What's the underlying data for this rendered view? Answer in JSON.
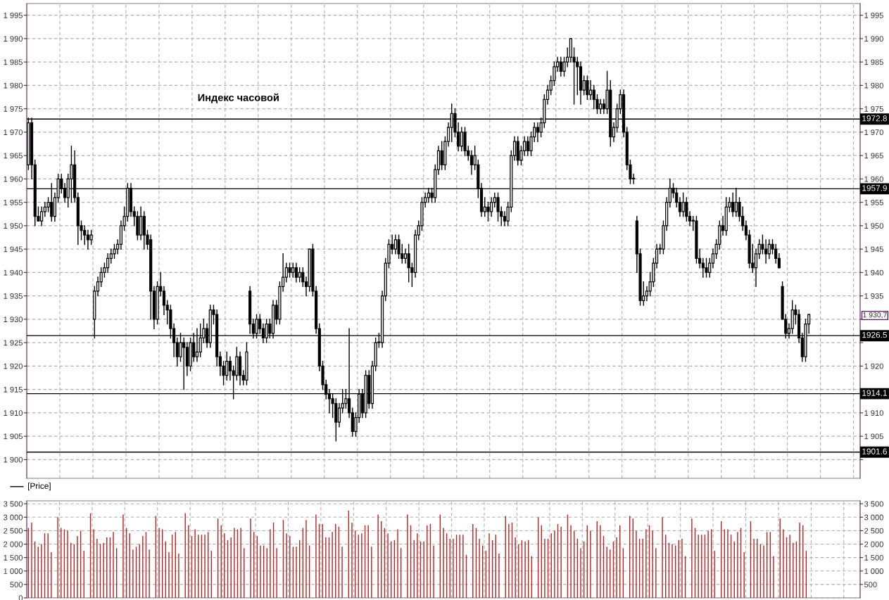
{
  "chart_data": [
    {
      "type": "candlestick",
      "title": "Индекс часовой",
      "grid": true,
      "annotations": [
        "[Price]",
        "1 930,7"
      ],
      "categories": [
        null,
        null,
        null,
        null,
        null,
        null,
        null,
        null,
        null,
        null,
        null,
        null,
        null,
        null,
        null,
        null,
        null,
        null,
        null,
        null,
        null,
        null,
        null,
        null,
        null,
        null,
        null,
        null,
        null,
        null,
        null,
        null,
        null,
        null,
        null,
        null,
        null,
        null,
        null,
        null,
        null,
        null,
        null,
        null,
        null,
        null,
        null,
        null,
        null,
        null,
        null,
        null,
        null,
        null,
        null,
        null,
        null,
        null,
        null,
        null,
        null,
        null,
        null,
        null,
        null,
        null,
        null,
        null,
        null,
        null,
        null,
        null,
        null,
        null,
        null,
        null,
        null,
        null,
        null,
        null,
        null,
        null,
        null,
        null,
        null,
        null,
        null,
        null,
        null,
        null,
        null,
        null,
        null,
        null,
        null,
        null,
        null,
        null,
        null,
        null,
        null,
        null,
        null,
        null,
        null,
        null,
        null,
        null,
        null,
        null,
        null,
        null,
        null,
        null,
        null,
        null,
        null,
        null,
        null,
        null,
        null,
        null,
        null,
        null,
        null,
        null,
        null,
        null,
        null,
        null,
        null,
        null,
        null,
        null,
        null,
        null,
        null,
        null,
        null,
        null,
        null,
        null,
        null,
        null,
        null,
        null,
        null,
        null,
        null,
        null,
        null,
        null,
        null,
        null,
        null,
        null,
        null,
        null,
        null,
        null,
        null,
        null,
        null,
        null,
        null,
        null,
        null,
        null,
        null,
        null,
        null,
        null,
        null,
        null,
        null,
        null,
        null,
        null,
        null,
        null,
        null,
        null,
        null,
        null,
        null,
        null,
        null,
        null,
        null,
        null,
        null,
        null,
        null,
        null,
        null,
        null,
        null,
        null,
        null,
        null,
        null,
        null,
        null,
        null,
        null,
        null,
        null,
        null,
        null,
        null,
        null,
        null,
        null,
        null,
        null,
        null,
        null,
        null,
        null,
        null,
        null,
        null,
        null,
        null,
        null,
        null,
        null,
        null,
        null,
        null,
        null,
        null,
        null,
        null,
        null,
        null,
        null,
        null,
        null,
        null,
        null,
        null,
        null,
        null,
        null,
        null,
        null,
        null,
        null,
        null,
        null,
        null
      ],
      "ohlc": [
        [
          1963,
          1973,
          1962,
          1972
        ],
        [
          1972,
          1973,
          1960,
          1963
        ],
        [
          1963,
          1964,
          1950,
          1952
        ],
        [
          1952,
          1954,
          1951,
          1951
        ],
        [
          1951,
          1954,
          1950,
          1953
        ],
        [
          1953,
          1955,
          1952,
          1954
        ],
        [
          1954,
          1956,
          1953,
          1955
        ],
        [
          1955,
          1959,
          1951,
          1952
        ],
        [
          1952,
          1957,
          1951,
          1956
        ],
        [
          1956,
          1961,
          1955,
          1960
        ],
        [
          1960,
          1961,
          1957,
          1958
        ],
        [
          1958,
          1959,
          1955,
          1956
        ],
        [
          1956,
          1961,
          1954,
          1960
        ],
        [
          1960,
          1967,
          1955,
          1963
        ],
        [
          1963,
          1966,
          1955,
          1956
        ],
        [
          1956,
          1957,
          1946,
          1950
        ],
        [
          1950,
          1951,
          1947,
          1949
        ],
        [
          1949,
          1950,
          1946,
          1948
        ],
        [
          1948,
          1949,
          1945,
          1947
        ],
        [
          1947,
          1949,
          1946,
          1948
        ],
        [
          1930,
          1937,
          1926,
          1936
        ],
        [
          1936,
          1939,
          1935,
          1938
        ],
        [
          1938,
          1941,
          1937,
          1940
        ],
        [
          1940,
          1942,
          1939,
          1941
        ],
        [
          1941,
          1944,
          1940,
          1943
        ],
        [
          1943,
          1945,
          1942,
          1944
        ],
        [
          1944,
          1946,
          1943,
          1945
        ],
        [
          1945,
          1947,
          1944,
          1946
        ],
        [
          1946,
          1951,
          1945,
          1950
        ],
        [
          1950,
          1954,
          1949,
          1952
        ],
        [
          1952,
          1959,
          1951,
          1958
        ],
        [
          1958,
          1959,
          1952,
          1953
        ],
        [
          1953,
          1954,
          1950,
          1952
        ],
        [
          1952,
          1953,
          1947,
          1948
        ],
        [
          1948,
          1954,
          1947,
          1952
        ],
        [
          1952,
          1953,
          1945,
          1948
        ],
        [
          1948,
          1949,
          1945,
          1946
        ],
        [
          1947,
          1948,
          1930,
          1936
        ],
        [
          1936,
          1937,
          1928,
          1930
        ],
        [
          1930,
          1938,
          1929,
          1937
        ],
        [
          1937,
          1940,
          1935,
          1936
        ],
        [
          1936,
          1937,
          1931,
          1933
        ],
        [
          1933,
          1934,
          1929,
          1932
        ],
        [
          1932,
          1933,
          1926,
          1928
        ],
        [
          1928,
          1929,
          1922,
          1925
        ],
        [
          1925,
          1926,
          1920,
          1922
        ],
        [
          1922,
          1927,
          1921,
          1925
        ],
        [
          1925,
          1926,
          1915,
          1924
        ],
        [
          1924,
          1925,
          1918,
          1920
        ],
        [
          1920,
          1926,
          1919,
          1925
        ],
        [
          1925,
          1927,
          1921,
          1922
        ],
        [
          1922,
          1928,
          1921,
          1923
        ],
        [
          1923,
          1929,
          1922,
          1926
        ],
        [
          1926,
          1930,
          1925,
          1928
        ],
        [
          1928,
          1929,
          1924,
          1925
        ],
        [
          1925,
          1933,
          1924,
          1932
        ],
        [
          1932,
          1933,
          1929,
          1931
        ],
        [
          1931,
          1932,
          1920,
          1922
        ],
        [
          1922,
          1923,
          1918,
          1920
        ],
        [
          1920,
          1921,
          1916,
          1918
        ],
        [
          1918,
          1923,
          1917,
          1921
        ],
        [
          1921,
          1922,
          1917,
          1919
        ],
        [
          1919,
          1920,
          1913,
          1918
        ],
        [
          1918,
          1924,
          1917,
          1922
        ],
        [
          1922,
          1923,
          1916,
          1918
        ],
        [
          1918,
          1919,
          1916,
          1917
        ],
        [
          1917,
          1925,
          1916,
          1923
        ],
        [
          1936,
          1937,
          1927,
          1929
        ],
        [
          1929,
          1930,
          1926,
          1927
        ],
        [
          1927,
          1931,
          1926,
          1930
        ],
        [
          1930,
          1931,
          1927,
          1928
        ],
        [
          1928,
          1929,
          1925,
          1926
        ],
        [
          1926,
          1930,
          1925,
          1929
        ],
        [
          1929,
          1930,
          1926,
          1927
        ],
        [
          1927,
          1934,
          1926,
          1933
        ],
        [
          1933,
          1934,
          1929,
          1930
        ],
        [
          1930,
          1938,
          1929,
          1937
        ],
        [
          1937,
          1944,
          1936,
          1939
        ],
        [
          1939,
          1942,
          1938,
          1941
        ],
        [
          1941,
          1942,
          1939,
          1940
        ],
        [
          1940,
          1942,
          1939,
          1941
        ],
        [
          1941,
          1942,
          1938,
          1939
        ],
        [
          1939,
          1941,
          1938,
          1940
        ],
        [
          1940,
          1941,
          1937,
          1938
        ],
        [
          1938,
          1939,
          1935,
          1937
        ],
        [
          1937,
          1945,
          1936,
          1945
        ],
        [
          1945,
          1946,
          1935,
          1936
        ],
        [
          1936,
          1937,
          1927,
          1928
        ],
        [
          1928,
          1929,
          1919,
          1920
        ],
        [
          1920,
          1921,
          1915,
          1916
        ],
        [
          1916,
          1917,
          1913,
          1914
        ],
        [
          1914,
          1915,
          1910,
          1913
        ],
        [
          1913,
          1914,
          1909,
          1912
        ],
        [
          1912,
          1913,
          1904,
          1908
        ],
        [
          1908,
          1912,
          1907,
          1911
        ],
        [
          1911,
          1915,
          1910,
          1912
        ],
        [
          1912,
          1915,
          1911,
          1913
        ],
        [
          1913,
          1928,
          1909,
          1910
        ],
        [
          1910,
          1911,
          1905,
          1906
        ],
        [
          1906,
          1910,
          1905,
          1909
        ],
        [
          1909,
          1915,
          1908,
          1914
        ],
        [
          1914,
          1915,
          1909,
          1910
        ],
        [
          1910,
          1919,
          1909,
          1918
        ],
        [
          1918,
          1919,
          1911,
          1912
        ],
        [
          1912,
          1921,
          1911,
          1920
        ],
        [
          1920,
          1926,
          1919,
          1925
        ],
        [
          1925,
          1927,
          1924,
          1925
        ],
        [
          1925,
          1936,
          1924,
          1935
        ],
        [
          1935,
          1943,
          1934,
          1942
        ],
        [
          1942,
          1947,
          1941,
          1946
        ],
        [
          1946,
          1948,
          1944,
          1945
        ],
        [
          1945,
          1948,
          1944,
          1947
        ],
        [
          1947,
          1948,
          1943,
          1944
        ],
        [
          1944,
          1946,
          1942,
          1943
        ],
        [
          1943,
          1945,
          1942,
          1944
        ],
        [
          1944,
          1946,
          1938,
          1941
        ],
        [
          1941,
          1942,
          1937,
          1940
        ],
        [
          1940,
          1949,
          1939,
          1948
        ],
        [
          1948,
          1951,
          1947,
          1950
        ],
        [
          1950,
          1956,
          1949,
          1955
        ],
        [
          1955,
          1957,
          1954,
          1956
        ],
        [
          1956,
          1958,
          1955,
          1957
        ],
        [
          1957,
          1958,
          1955,
          1956
        ],
        [
          1956,
          1963,
          1955,
          1962
        ],
        [
          1962,
          1967,
          1961,
          1966
        ],
        [
          1966,
          1968,
          1962,
          1963
        ],
        [
          1963,
          1969,
          1962,
          1968
        ],
        [
          1968,
          1972,
          1967,
          1971
        ],
        [
          1971,
          1976,
          1968,
          1974
        ],
        [
          1974,
          1975,
          1969,
          1970
        ],
        [
          1970,
          1972,
          1966,
          1967
        ],
        [
          1967,
          1971,
          1966,
          1970
        ],
        [
          1970,
          1971,
          1965,
          1966
        ],
        [
          1966,
          1967,
          1964,
          1965
        ],
        [
          1965,
          1966,
          1961,
          1963
        ],
        [
          1963,
          1967,
          1962,
          1965
        ],
        [
          1963,
          1964,
          1956,
          1958
        ],
        [
          1958,
          1959,
          1952,
          1953
        ],
        [
          1953,
          1956,
          1952,
          1954
        ],
        [
          1954,
          1955,
          1951,
          1953
        ],
        [
          1953,
          1956,
          1952,
          1955
        ],
        [
          1955,
          1957,
          1954,
          1956
        ],
        [
          1956,
          1957,
          1951,
          1953
        ],
        [
          1953,
          1954,
          1950,
          1952
        ],
        [
          1952,
          1953,
          1950,
          1951
        ],
        [
          1951,
          1955,
          1950,
          1954
        ],
        [
          1954,
          1966,
          1953,
          1965
        ],
        [
          1965,
          1969,
          1964,
          1968
        ],
        [
          1968,
          1969,
          1963,
          1964
        ],
        [
          1964,
          1967,
          1963,
          1966
        ],
        [
          1966,
          1969,
          1965,
          1968
        ],
        [
          1968,
          1969,
          1965,
          1966
        ],
        [
          1966,
          1970,
          1965,
          1969
        ],
        [
          1969,
          1972,
          1968,
          1971
        ],
        [
          1971,
          1972,
          1968,
          1970
        ],
        [
          1970,
          1973,
          1969,
          1972
        ],
        [
          1972,
          1978,
          1971,
          1977
        ],
        [
          1977,
          1980,
          1976,
          1979
        ],
        [
          1979,
          1982,
          1978,
          1981
        ],
        [
          1981,
          1985,
          1980,
          1984
        ],
        [
          1984,
          1986,
          1983,
          1985
        ],
        [
          1985,
          1986,
          1982,
          1983
        ],
        [
          1983,
          1986,
          1982,
          1985
        ],
        [
          1985,
          1988,
          1984,
          1986
        ],
        [
          1986,
          1990,
          1985,
          1990
        ],
        [
          1986,
          1988,
          1976,
          1985
        ],
        [
          1985,
          1986,
          1978,
          1984
        ],
        [
          1984,
          1985,
          1976,
          1979
        ],
        [
          1979,
          1982,
          1978,
          1981
        ],
        [
          1981,
          1982,
          1977,
          1978
        ],
        [
          1978,
          1981,
          1977,
          1979
        ],
        [
          1979,
          1980,
          1975,
          1977
        ],
        [
          1977,
          1978,
          1974,
          1975
        ],
        [
          1975,
          1977,
          1974,
          1976
        ],
        [
          1976,
          1977,
          1974,
          1975
        ],
        [
          1975,
          1983,
          1974,
          1979
        ],
        [
          1979,
          1981,
          1967,
          1969
        ],
        [
          1969,
          1972,
          1968,
          1971
        ],
        [
          1971,
          1976,
          1970,
          1975
        ],
        [
          1975,
          1979,
          1974,
          1978
        ],
        [
          1978,
          1979,
          1969,
          1970
        ],
        [
          1970,
          1971,
          1962,
          1963
        ],
        [
          1963,
          1964,
          1959,
          1960
        ],
        [
          1960,
          1961,
          1959,
          1960
        ],
        [
          1951,
          1952,
          1940,
          1944
        ],
        [
          1944,
          1945,
          1933,
          1934
        ],
        [
          1934,
          1938,
          1933,
          1935
        ],
        [
          1935,
          1937,
          1934,
          1936
        ],
        [
          1936,
          1940,
          1935,
          1938
        ],
        [
          1938,
          1943,
          1937,
          1942
        ],
        [
          1942,
          1946,
          1941,
          1945
        ],
        [
          1945,
          1946,
          1944,
          1945
        ],
        [
          1945,
          1951,
          1944,
          1950
        ],
        [
          1950,
          1956,
          1949,
          1955
        ],
        [
          1955,
          1960,
          1954,
          1958
        ],
        [
          1958,
          1959,
          1956,
          1957
        ],
        [
          1957,
          1958,
          1954,
          1955
        ],
        [
          1955,
          1956,
          1952,
          1953
        ],
        [
          1953,
          1957,
          1952,
          1955
        ],
        [
          1955,
          1956,
          1951,
          1952
        ],
        [
          1952,
          1953,
          1950,
          1951
        ],
        [
          1951,
          1952,
          1949,
          1951
        ],
        [
          1951,
          1952,
          1942,
          1943
        ],
        [
          1943,
          1945,
          1941,
          1942
        ],
        [
          1942,
          1943,
          1939,
          1941
        ],
        [
          1941,
          1943,
          1939,
          1940
        ],
        [
          1940,
          1943,
          1939,
          1942
        ],
        [
          1942,
          1945,
          1941,
          1944
        ],
        [
          1944,
          1947,
          1943,
          1946
        ],
        [
          1946,
          1951,
          1945,
          1950
        ],
        [
          1950,
          1952,
          1948,
          1949
        ],
        [
          1949,
          1956,
          1948,
          1954
        ],
        [
          1954,
          1956,
          1953,
          1955
        ],
        [
          1955,
          1957,
          1952,
          1953
        ],
        [
          1953,
          1958,
          1952,
          1955
        ],
        [
          1955,
          1956,
          1951,
          1952
        ],
        [
          1952,
          1954,
          1949,
          1950
        ],
        [
          1950,
          1951,
          1947,
          1948
        ],
        [
          1948,
          1949,
          1941,
          1942
        ],
        [
          1942,
          1946,
          1940,
          1941
        ],
        [
          1941,
          1945,
          1937,
          1944
        ],
        [
          1944,
          1947,
          1943,
          1946
        ],
        [
          1946,
          1948,
          1944,
          1945
        ],
        [
          1945,
          1947,
          1942,
          1944
        ],
        [
          1944,
          1947,
          1943,
          1946
        ],
        [
          1946,
          1947,
          1944,
          1945
        ],
        [
          1945,
          1946,
          1942,
          1943
        ],
        [
          1943,
          1944,
          1941,
          1941
        ],
        [
          1937,
          1938,
          1930,
          1930
        ],
        [
          1930,
          1931,
          1926,
          1927
        ],
        [
          1927,
          1929,
          1926,
          1928
        ],
        [
          1928,
          1934,
          1927,
          1932
        ],
        [
          1932,
          1933,
          1929,
          1931
        ],
        [
          1931,
          1932,
          1925,
          1926
        ],
        [
          1926,
          1927,
          1921,
          1922
        ],
        [
          1922,
          1930,
          1921,
          1929
        ],
        [
          1929,
          1931,
          1927,
          1931
        ],
        null,
        null,
        null,
        null,
        null,
        null,
        null,
        null,
        null,
        null,
        null,
        null,
        null,
        null,
        null
      ],
      "ylim": [
        1896,
        1997.5
      ],
      "yticks": [
        {
          "value": 1900,
          "label": "1 900"
        },
        {
          "value": 1905,
          "label": "1 905"
        },
        {
          "value": 1910,
          "label": "1 910"
        },
        {
          "value": 1915,
          "label": "1 915"
        },
        {
          "value": 1920,
          "label": "1 920"
        },
        {
          "value": 1925,
          "label": "1 925"
        },
        {
          "value": 1930,
          "label": "1 930"
        },
        {
          "value": 1935,
          "label": "1 935"
        },
        {
          "value": 1940,
          "label": "1 940"
        },
        {
          "value": 1945,
          "label": "1 945"
        },
        {
          "value": 1950,
          "label": "1 950"
        },
        {
          "value": 1955,
          "label": "1 955"
        },
        {
          "value": 1960,
          "label": "1 960"
        },
        {
          "value": 1965,
          "label": "1 965"
        },
        {
          "value": 1970,
          "label": "1 970"
        },
        {
          "value": 1975,
          "label": "1 975"
        },
        {
          "value": 1980,
          "label": "1 980"
        },
        {
          "value": 1985,
          "label": "1 985"
        },
        {
          "value": 1990,
          "label": "1 990"
        },
        {
          "value": 1995,
          "label": "1 995"
        }
      ],
      "y2lim": [
        1896,
        1997.5
      ],
      "y2ticks": [
        {
          "value": 1900,
          "label": null
        },
        {
          "value": 1905,
          "label": "1 905"
        },
        {
          "value": 1910,
          "label": "1 910"
        },
        {
          "value": 1915,
          "label": null
        },
        {
          "value": 1920,
          "label": "1 920"
        },
        {
          "value": 1925,
          "label": null
        },
        {
          "value": 1930,
          "label": null
        },
        {
          "value": 1935,
          "label": "1 935"
        },
        {
          "value": 1940,
          "label": "1 940"
        },
        {
          "value": 1945,
          "label": "1 945"
        },
        {
          "value": 1950,
          "label": "1 950"
        },
        {
          "value": 1955,
          "label": "1 955"
        },
        {
          "value": 1960,
          "label": "1 960"
        },
        {
          "value": 1965,
          "label": "1 965"
        },
        {
          "value": 1970,
          "label": "1 970"
        },
        {
          "value": 1975,
          "label": "1 975"
        },
        {
          "value": 1980,
          "label": "1 980"
        },
        {
          "value": 1985,
          "label": "1 985"
        },
        {
          "value": 1990,
          "label": "1 990"
        },
        {
          "value": 1995,
          "label": "1 995"
        }
      ],
      "ref_lines": [
        {
          "axis": "y",
          "value": 1972.8,
          "label": "1972.8",
          "color": "#000000"
        },
        {
          "axis": "y",
          "value": 1957.9,
          "label": "1957.9",
          "color": "#000000"
        },
        {
          "axis": "y",
          "value": 1926.5,
          "label": "1926.5",
          "color": "#000000"
        },
        {
          "axis": "y",
          "value": 1914.1,
          "label": "1914.1",
          "color": "#000000"
        },
        {
          "axis": "y",
          "value": 1901.6,
          "label": "1901.6",
          "color": "#000000"
        }
      ]
    },
    {
      "type": "bar",
      "grid": true,
      "color": "#b22222",
      "categories": [
        null,
        null,
        null,
        null,
        null,
        null,
        null,
        null,
        null,
        null,
        null,
        null,
        null,
        null,
        null,
        null,
        null,
        null,
        null,
        null,
        null,
        null,
        null,
        null,
        null,
        null,
        null,
        null,
        null,
        null,
        null,
        null,
        null,
        null,
        null,
        null,
        null,
        null,
        null,
        null,
        null,
        null,
        null,
        null,
        null,
        null,
        null,
        null,
        null,
        null,
        null,
        null,
        null,
        null,
        null,
        null,
        null,
        null,
        null,
        null,
        null,
        null,
        null,
        null,
        null,
        null,
        null,
        null,
        null,
        null,
        null,
        null,
        null,
        null,
        null,
        null,
        null,
        null,
        null,
        null,
        null,
        null,
        null,
        null,
        null,
        null,
        null,
        null,
        null,
        null,
        null,
        null,
        null,
        null,
        null,
        null,
        null,
        null,
        null,
        null,
        null,
        null,
        null,
        null,
        null,
        null,
        null,
        null,
        null,
        null,
        null,
        null,
        null,
        null,
        null,
        null,
        null,
        null,
        null,
        null,
        null,
        null,
        null,
        null,
        null,
        null,
        null,
        null,
        null,
        null,
        null,
        null,
        null,
        null,
        null,
        null,
        null,
        null,
        null,
        null,
        null,
        null,
        null,
        null,
        null,
        null,
        null,
        null,
        null,
        null,
        null,
        null,
        null,
        null,
        null,
        null,
        null,
        null,
        null,
        null,
        null,
        null,
        null,
        null,
        null,
        null,
        null,
        null,
        null,
        null,
        null,
        null,
        null,
        null,
        null,
        null,
        null,
        null,
        null,
        null,
        null,
        null,
        null,
        null,
        null,
        null,
        null,
        null,
        null,
        null,
        null,
        null,
        null,
        null,
        null,
        null,
        null,
        null,
        null,
        null,
        null,
        null,
        null,
        null,
        null,
        null,
        null,
        null,
        null,
        null,
        null,
        null,
        null,
        null,
        null,
        null,
        null,
        null,
        null,
        null,
        null,
        null,
        null,
        null,
        null,
        null,
        null,
        null,
        null,
        null,
        null,
        null,
        null,
        null,
        null,
        null,
        null,
        null,
        null,
        null,
        null,
        null,
        null,
        null,
        null,
        null,
        null,
        null,
        null,
        null,
        null,
        null,
        null,
        null,
        null
      ],
      "values": [
        2600,
        2800,
        2100,
        1900,
        2000,
        2400,
        2400,
        1700,
        null,
        3000,
        2600,
        2550,
        2500,
        2050,
        2000,
        2300,
        2500,
        1750,
        null,
        3150,
        2550,
        2200,
        2000,
        2050,
        2250,
        2250,
        2450,
        1850,
        null,
        3100,
        2600,
        2400,
        1800,
        1900,
        2000,
        2300,
        2450,
        1800,
        null,
        3050,
        2600,
        2550,
        2100,
        1700,
        2350,
        2450,
        1650,
        null,
        3150,
        2700,
        2300,
        2550,
        2350,
        2350,
        2350,
        2450,
        1750,
        null,
        2950,
        2700,
        2400,
        2150,
        2250,
        2600,
        2550,
        2600,
        1850,
        null,
        2950,
        2450,
        2300,
        1950,
        1950,
        1850,
        2550,
        2800,
        1850,
        null,
        2900,
        2400,
        2300,
        1900,
        1900,
        2150,
        2600,
        2900,
        1950,
        null,
        3100,
        2750,
        2750,
        2250,
        2250,
        2450,
        2750,
        2650,
        1900,
        null,
        3250,
        2800,
        2500,
        2350,
        2400,
        2700,
        2700,
        1900,
        null,
        3100,
        2850,
        2600,
        2400,
        2100,
        2150,
        2550,
        1850,
        null,
        3100,
        2700,
        2150,
        2400,
        2100,
        2100,
        2700,
        2750,
        1950,
        null,
        3100,
        2600,
        2400,
        2200,
        2200,
        2350,
        2350,
        2350,
        1600,
        null,
        2750,
        2600,
        2200,
        1950,
        1750,
        2400,
        2150,
        2350,
        1650,
        null,
        3050,
        2750,
        2800,
        2250,
        2000,
        2150,
        2100,
        2150,
        1550,
        null,
        3000,
        2700,
        2200,
        2200,
        2400,
        2500,
        2750,
        2650,
        null,
        3100,
        2700,
        2500,
        2200,
        1850,
        2100,
        2700,
        2500,
        null,
        2850,
        2700,
        2300,
        1900,
        1800,
        2100,
        2250,
        2700,
        1850,
        null,
        3050,
        2950,
        2500,
        2200,
        2200,
        2550,
        2700,
        2500,
        1850,
        null,
        3000,
        2350,
        2050,
        2000,
        1950,
        2150,
        2200,
        1550,
        null,
        2950,
        2600,
        2350,
        2350,
        2350,
        2500,
        2550,
        1750,
        null,
        2850,
        2550,
        2550,
        2350,
        2100,
        2450,
        2600,
        1700,
        null,
        2850,
        2200,
        2200,
        2000,
        1950,
        2450,
        2450,
        1550,
        null,
        2950,
        2550,
        2250,
        2350,
        2050,
        2100,
        2800,
        2700,
        1750,
        null,
        null,
        null,
        null,
        null,
        null,
        null,
        null,
        null,
        null,
        null,
        null,
        null,
        null,
        null,
        null
      ],
      "ylim": [
        0,
        3610
      ],
      "yticks": [
        0,
        500,
        {
          "value": 1000,
          "label": "1 000"
        },
        {
          "value": 1500,
          "label": "1 500"
        },
        {
          "value": 2000,
          "label": "2 000"
        },
        {
          "value": 2500,
          "label": "2 500"
        },
        {
          "value": 3000,
          "label": "3 000"
        },
        {
          "value": 3500,
          "label": "3 500"
        }
      ],
      "y2lim": [
        0,
        3610
      ],
      "y2ticks": [
        500,
        {
          "value": 1000,
          "label": "1 000"
        },
        {
          "value": 1500,
          "label": "1 500"
        },
        {
          "value": 2000,
          "label": "2 000"
        },
        {
          "value": 2500,
          "label": "2 500"
        },
        {
          "value": 3000,
          "label": "3 000"
        },
        {
          "value": 3500,
          "label": "3 500"
        }
      ]
    }
  ]
}
